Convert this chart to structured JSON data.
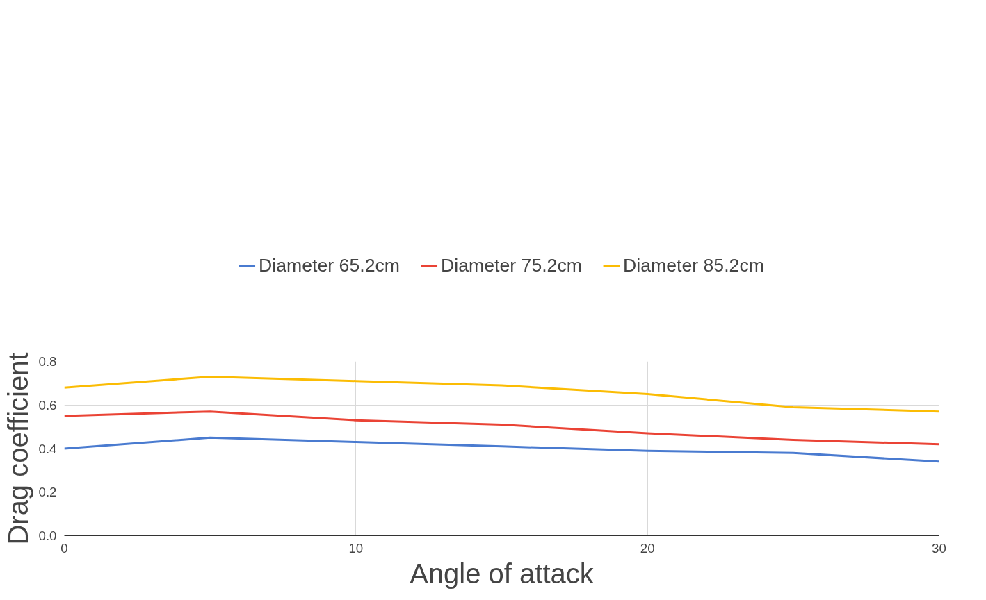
{
  "chart_data": {
    "type": "line",
    "xlabel": "Angle of attack",
    "ylabel": "Drag coefficient",
    "x": [
      0,
      5,
      10,
      15,
      20,
      25,
      30
    ],
    "series": [
      {
        "name": "Diameter 65.2cm",
        "color": "#4a7bd0",
        "values": [
          0.4,
          0.45,
          0.43,
          0.41,
          0.39,
          0.38,
          0.34
        ]
      },
      {
        "name": "Diameter 75.2cm",
        "color": "#ea4335",
        "values": [
          0.55,
          0.57,
          0.53,
          0.51,
          0.47,
          0.44,
          0.42
        ]
      },
      {
        "name": "Diameter 85.2cm",
        "color": "#fbbc04",
        "values": [
          0.68,
          0.73,
          0.71,
          0.69,
          0.65,
          0.59,
          0.57
        ]
      }
    ],
    "xlim": [
      0,
      30
    ],
    "xticks": [
      0,
      10,
      20,
      30
    ],
    "ylim": [
      0,
      0.8
    ],
    "yticks": [
      {
        "value": 0,
        "label": "0.0"
      },
      {
        "value": 0.2,
        "label": "0.2"
      },
      {
        "value": 0.4,
        "label": "0.4"
      },
      {
        "value": 0.6,
        "label": "0.6"
      },
      {
        "value": 0.8,
        "label": "0.8"
      }
    ],
    "grid": true,
    "legend": "top",
    "line_style": "solid"
  }
}
